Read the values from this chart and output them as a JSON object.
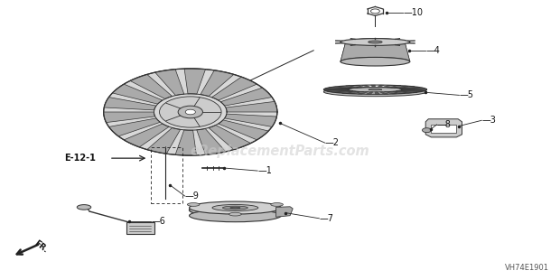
{
  "bg_color": "#ffffff",
  "watermark": "eReplacementParts.com",
  "diagram_code": "VH74E1901",
  "line_color": "#222222",
  "text_color": "#111111"
}
